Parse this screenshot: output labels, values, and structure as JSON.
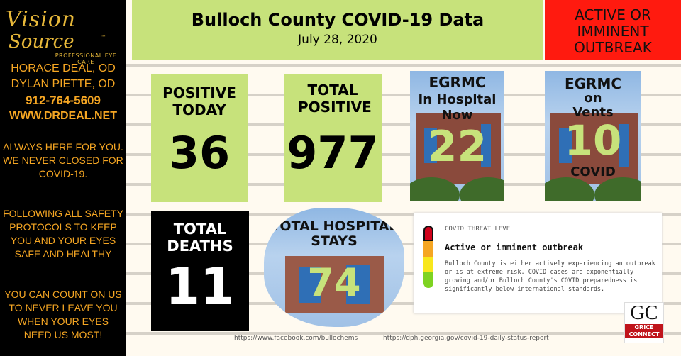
{
  "sidebar": {
    "logo_line1": "Vision",
    "logo_line2": "Source",
    "logo_tm": "™",
    "logo_sub": "PROFESSIONAL EYE CARE",
    "doctor1": "HORACE DEAL, OD",
    "doctor2": "DYLAN PIETTE, OD",
    "phone": "912-764-5609",
    "website": "WWW.DRDEAL.NET",
    "message1": "ALWAYS HERE FOR YOU.  WE NEVER CLOSED FOR COVID-19.",
    "message2": "FOLLOWING ALL SAFETY PROTOCOLS TO KEEP YOU AND YOUR EYES SAFE AND HEALTHY",
    "message3": "YOU CAN COUNT ON US TO NEVER LEAVE YOU WHEN YOUR EYES NEED US MOST!"
  },
  "header": {
    "title": "Bulloch County COVID-19 Data",
    "date": "July 28, 2020",
    "status": "ACTIVE OR IMMINENT OUTBREAK"
  },
  "stats": {
    "positive_today_label": "POSITIVE TODAY",
    "positive_today_value": "36",
    "total_positive_label": "TOTAL POSITIVE",
    "total_positive_value": "977",
    "in_hospital_label1": "EGRMC",
    "in_hospital_label2": "In Hospital",
    "in_hospital_label3": "Now",
    "in_hospital_value": "22",
    "vents_label1": "EGRMC",
    "vents_label2": "on",
    "vents_label3": "Vents",
    "vents_value": "10",
    "vents_sub": "COVID",
    "total_deaths_label": "TOTAL DEATHS",
    "total_deaths_value": "11",
    "hospital_stays_label": "TOTAL HOSPITAL STAYS",
    "hospital_stays_value": "74"
  },
  "threat": {
    "level_label": "COVID THREAT LEVEL",
    "heading": "Active or imminent outbreak",
    "description": "Bulloch County is either actively experiencing an outbreak or is at extreme risk. COVID cases are exponentially growing and/or Bulloch County's COVID preparedness is significantly below international standards.",
    "colors": [
      "#d0021b",
      "#f5a623",
      "#f8e71c",
      "#7ed321"
    ]
  },
  "links": {
    "facebook": "https://www.facebook.com/bullochems",
    "dph": "https://dph.georgia.gov/covid-19-daily-status-report"
  },
  "brand": {
    "gc": "GC",
    "grice1": "GRICE",
    "grice2": "CONNECT"
  },
  "colors": {
    "accent_green": "#c7e27b",
    "alert_red": "#ff1a0f",
    "sidebar_text": "#f5a623"
  }
}
